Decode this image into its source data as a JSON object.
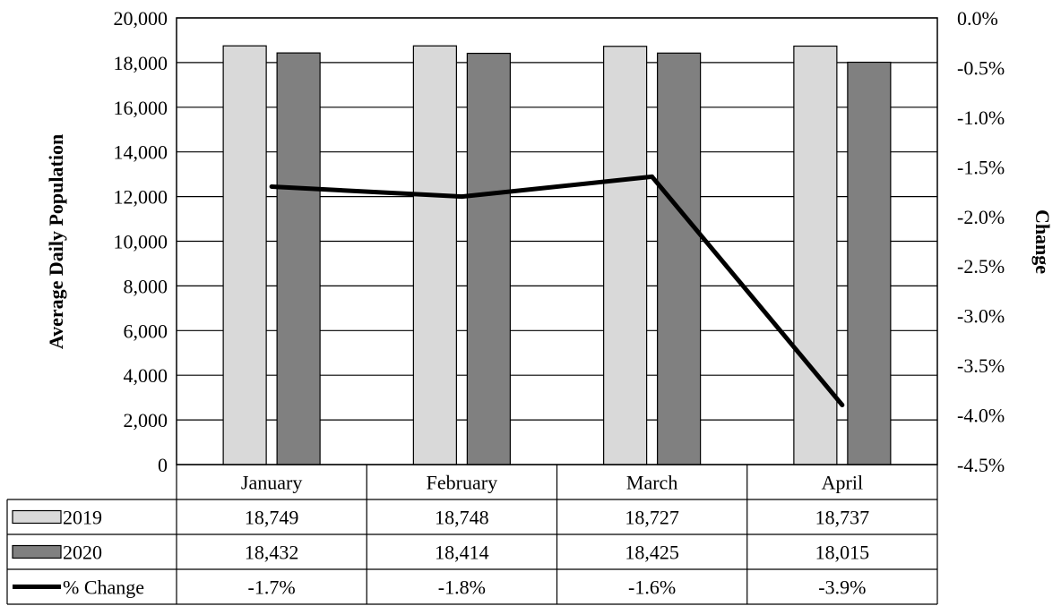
{
  "chart_data": {
    "type": "bar",
    "categories": [
      "January",
      "February",
      "March",
      "April"
    ],
    "series": [
      {
        "name": "2019",
        "type": "bar",
        "axis": "left",
        "color": "#d9d9d9",
        "values": [
          18749,
          18748,
          18727,
          18737
        ],
        "labels": [
          "18,749",
          "18,748",
          "18,727",
          "18,737"
        ]
      },
      {
        "name": "2020",
        "type": "bar",
        "axis": "left",
        "color": "#808080",
        "values": [
          18432,
          18414,
          18425,
          18015
        ],
        "labels": [
          "18,432",
          "18,414",
          "18,425",
          "18,015"
        ]
      },
      {
        "name": "% Change",
        "type": "line",
        "axis": "right",
        "color": "#000000",
        "values": [
          -1.7,
          -1.8,
          -1.6,
          -3.9
        ],
        "labels": [
          "-1.7%",
          "-1.8%",
          "-1.6%",
          "-3.9%"
        ]
      }
    ],
    "ylabel": "Average Daily Population",
    "y2label": "Change",
    "ylim": [
      0,
      20000
    ],
    "y2lim": [
      -4.5,
      0.0
    ],
    "yticks": [
      "0",
      "2,000",
      "4,000",
      "6,000",
      "8,000",
      "10,000",
      "12,000",
      "14,000",
      "16,000",
      "18,000",
      "20,000"
    ],
    "y2ticks": [
      "-4.5%",
      "-4.0%",
      "-3.5%",
      "-3.0%",
      "-2.5%",
      "-2.0%",
      "-1.5%",
      "-1.0%",
      "-0.5%",
      "0.0%"
    ],
    "grid": true,
    "legend": "data-table"
  }
}
